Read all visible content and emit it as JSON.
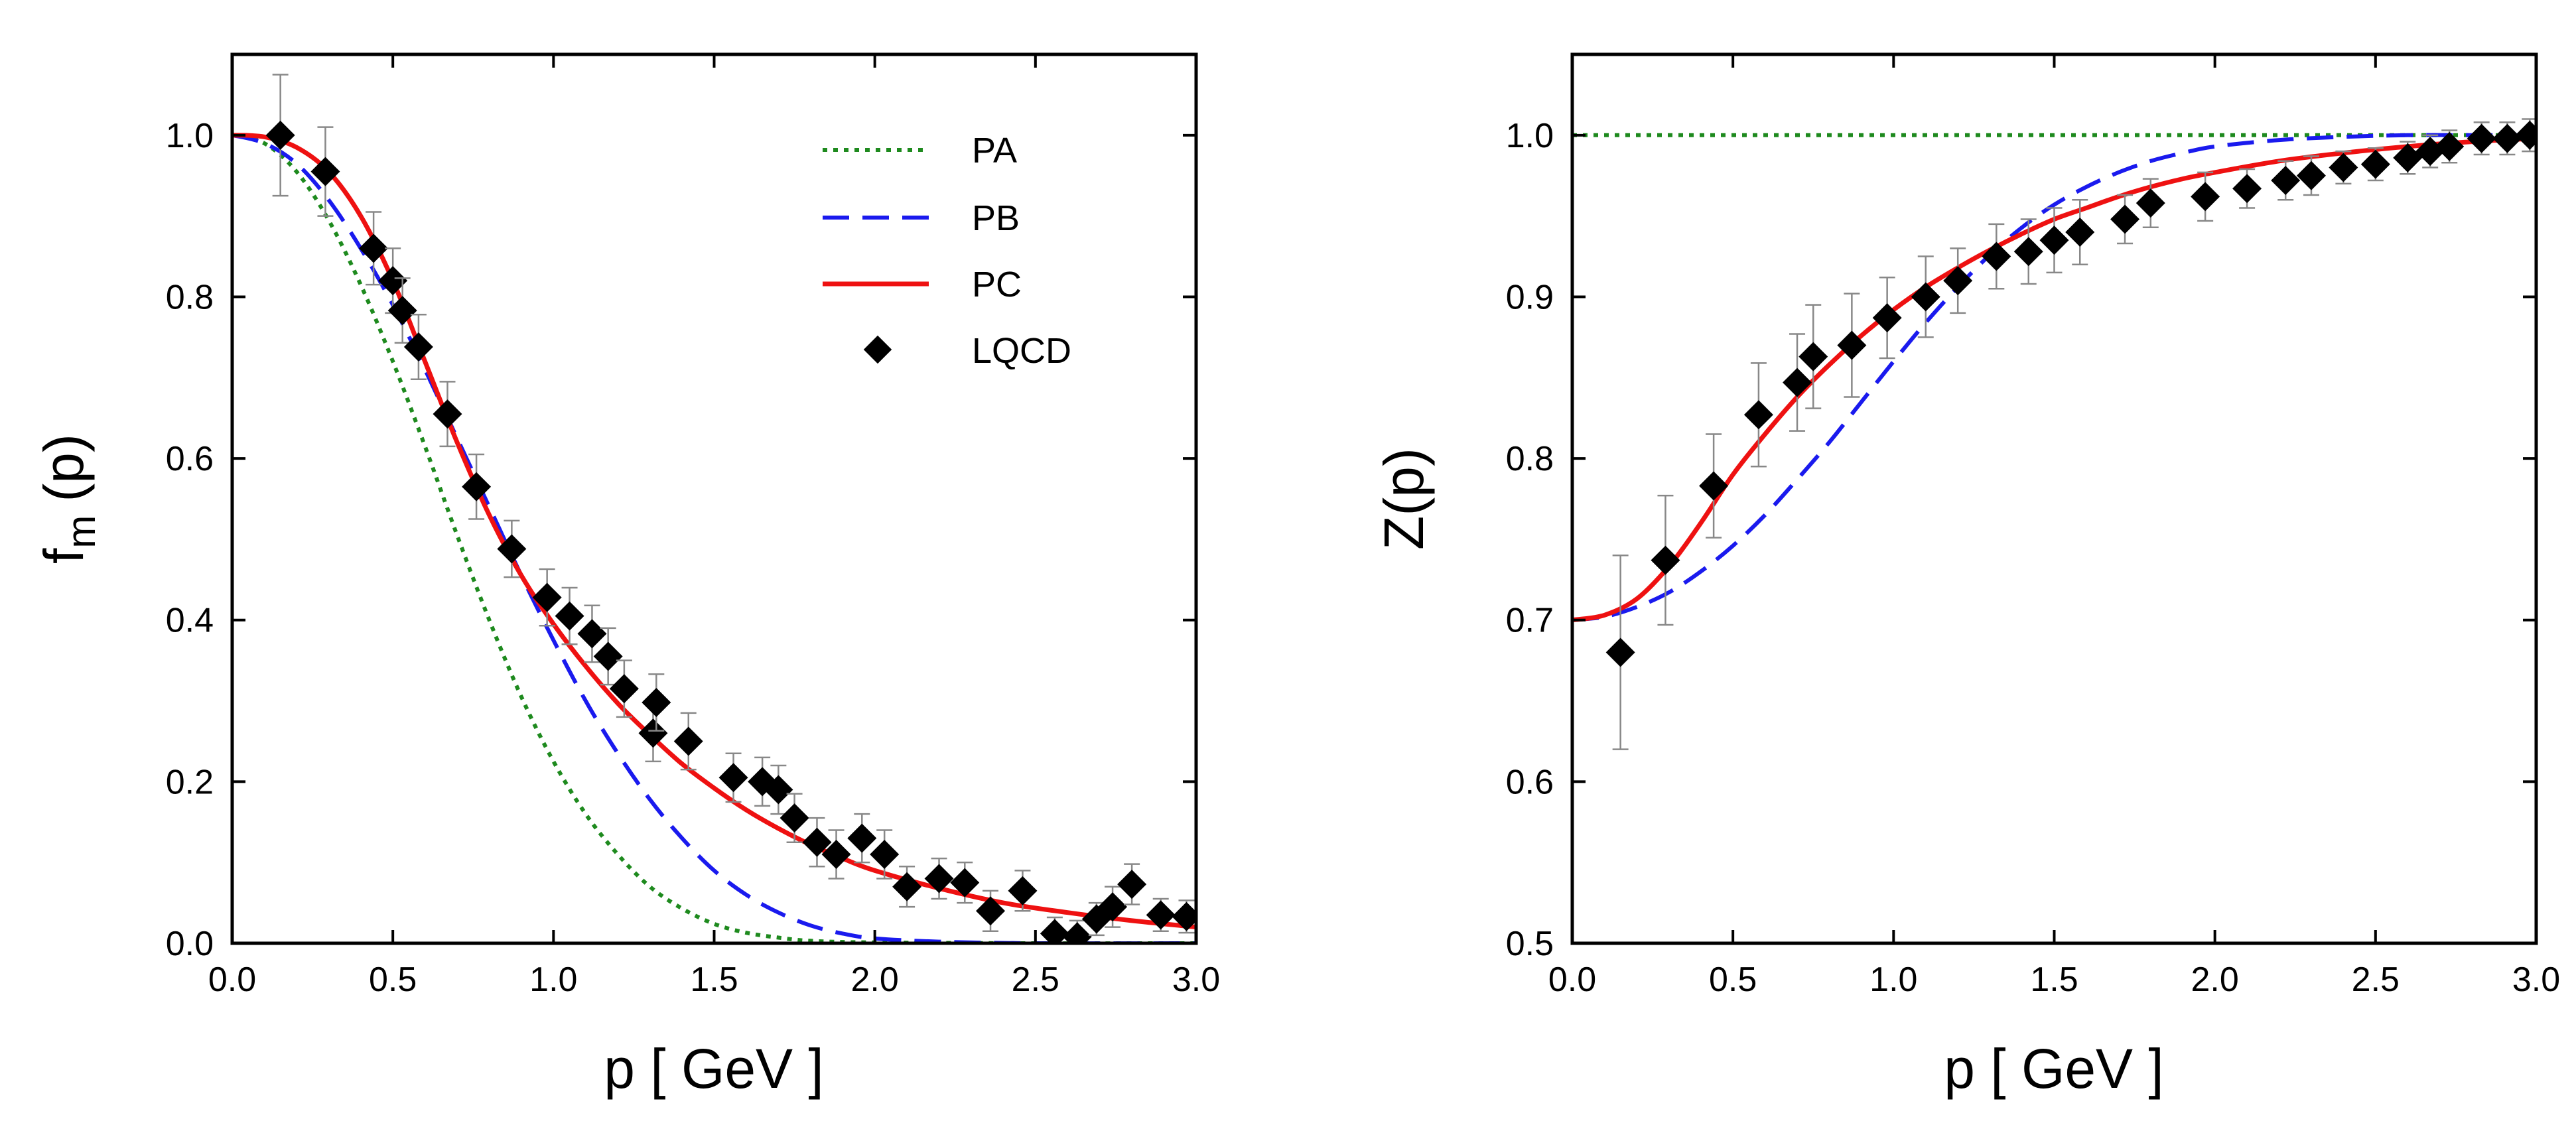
{
  "colors": {
    "PA": "#1e8a1e",
    "PB": "#1a1aee",
    "PC": "#ee1111",
    "LQCD": "#000000",
    "errorbar": "#888888"
  },
  "chart_data": [
    {
      "type": "line",
      "panel": "left",
      "xlabel": "p  [ GeV ]",
      "ylabel_main": "f",
      "ylabel_sub": "m",
      "ylabel_tail": "(p)",
      "xlim": [
        0,
        3.0
      ],
      "ylim": [
        0,
        1.1
      ],
      "xticks": [
        0,
        0.5,
        1.0,
        1.5,
        2.0,
        2.5,
        3.0
      ],
      "xtick_labels": [
        "0.0",
        "0.5",
        "1.0",
        "1.5",
        "2.0",
        "2.5",
        "3.0"
      ],
      "yticks": [
        0,
        0.2,
        0.4,
        0.6,
        0.8,
        1.0
      ],
      "ytick_labels": [
        "0.0",
        "0.2",
        "0.4",
        "0.6",
        "0.8",
        "1.0"
      ],
      "legend": [
        "PA",
        "PB",
        "PC",
        "LQCD"
      ],
      "legend_position": "top-right",
      "series": [
        {
          "name": "PA",
          "style": "dotted",
          "x": [
            0,
            0.1,
            0.2,
            0.3,
            0.4,
            0.5,
            0.6,
            0.7,
            0.8,
            0.9,
            1.0,
            1.1,
            1.2,
            1.3,
            1.4,
            1.5,
            1.6,
            1.7,
            1.8,
            2.0,
            2.5,
            3.0
          ],
          "y": [
            1.0,
            0.99,
            0.955,
            0.895,
            0.815,
            0.72,
            0.615,
            0.505,
            0.4,
            0.305,
            0.225,
            0.16,
            0.11,
            0.07,
            0.043,
            0.024,
            0.013,
            0.007,
            0.003,
            0.001,
            0.0,
            0.0
          ]
        },
        {
          "name": "PB",
          "style": "dashed",
          "x": [
            0,
            0.1,
            0.2,
            0.3,
            0.4,
            0.5,
            0.6,
            0.7,
            0.8,
            0.9,
            1.0,
            1.1,
            1.2,
            1.3,
            1.4,
            1.5,
            1.6,
            1.7,
            1.8,
            1.9,
            2.0,
            2.2,
            2.5,
            3.0
          ],
          "y": [
            1.0,
            0.99,
            0.965,
            0.92,
            0.86,
            0.79,
            0.71,
            0.625,
            0.54,
            0.455,
            0.375,
            0.3,
            0.235,
            0.178,
            0.13,
            0.09,
            0.06,
            0.038,
            0.022,
            0.012,
            0.006,
            0.002,
            0.0,
            0.0
          ]
        },
        {
          "name": "PC",
          "style": "solid",
          "x": [
            0,
            0.1,
            0.2,
            0.3,
            0.4,
            0.5,
            0.6,
            0.7,
            0.8,
            0.9,
            1.0,
            1.1,
            1.2,
            1.3,
            1.4,
            1.5,
            1.6,
            1.7,
            1.8,
            1.9,
            2.0,
            2.2,
            2.4,
            2.6,
            2.8,
            3.0
          ],
          "y": [
            1.0,
            0.998,
            0.985,
            0.955,
            0.9,
            0.82,
            0.72,
            0.62,
            0.53,
            0.455,
            0.395,
            0.343,
            0.297,
            0.258,
            0.222,
            0.192,
            0.165,
            0.142,
            0.122,
            0.105,
            0.09,
            0.068,
            0.05,
            0.038,
            0.028,
            0.02
          ]
        },
        {
          "name": "LQCD",
          "style": "diamond",
          "points": [
            {
              "x": 0.15,
              "y": 1.0,
              "err": 0.075
            },
            {
              "x": 0.29,
              "y": 0.955,
              "err": 0.055
            },
            {
              "x": 0.44,
              "y": 0.86,
              "err": 0.045
            },
            {
              "x": 0.5,
              "y": 0.82,
              "err": 0.04
            },
            {
              "x": 0.53,
              "y": 0.783,
              "err": 0.04
            },
            {
              "x": 0.58,
              "y": 0.738,
              "err": 0.04
            },
            {
              "x": 0.67,
              "y": 0.655,
              "err": 0.04
            },
            {
              "x": 0.76,
              "y": 0.565,
              "err": 0.04
            },
            {
              "x": 0.87,
              "y": 0.488,
              "err": 0.035
            },
            {
              "x": 0.98,
              "y": 0.428,
              "err": 0.035
            },
            {
              "x": 1.05,
              "y": 0.405,
              "err": 0.035
            },
            {
              "x": 1.12,
              "y": 0.383,
              "err": 0.035
            },
            {
              "x": 1.17,
              "y": 0.355,
              "err": 0.035
            },
            {
              "x": 1.22,
              "y": 0.315,
              "err": 0.035
            },
            {
              "x": 1.31,
              "y": 0.26,
              "err": 0.035
            },
            {
              "x": 1.32,
              "y": 0.298,
              "err": 0.035
            },
            {
              "x": 1.42,
              "y": 0.25,
              "err": 0.035
            },
            {
              "x": 1.56,
              "y": 0.205,
              "err": 0.03
            },
            {
              "x": 1.65,
              "y": 0.2,
              "err": 0.03
            },
            {
              "x": 1.7,
              "y": 0.19,
              "err": 0.03
            },
            {
              "x": 1.75,
              "y": 0.155,
              "err": 0.03
            },
            {
              "x": 1.82,
              "y": 0.125,
              "err": 0.03
            },
            {
              "x": 1.88,
              "y": 0.11,
              "err": 0.03
            },
            {
              "x": 1.96,
              "y": 0.13,
              "err": 0.03
            },
            {
              "x": 2.03,
              "y": 0.11,
              "err": 0.03
            },
            {
              "x": 2.1,
              "y": 0.07,
              "err": 0.025
            },
            {
              "x": 2.2,
              "y": 0.08,
              "err": 0.025
            },
            {
              "x": 2.28,
              "y": 0.075,
              "err": 0.025
            },
            {
              "x": 2.36,
              "y": 0.04,
              "err": 0.025
            },
            {
              "x": 2.46,
              "y": 0.065,
              "err": 0.025
            },
            {
              "x": 2.56,
              "y": 0.012,
              "err": 0.02
            },
            {
              "x": 2.63,
              "y": 0.008,
              "err": 0.02
            },
            {
              "x": 2.69,
              "y": 0.03,
              "err": 0.02
            },
            {
              "x": 2.74,
              "y": 0.045,
              "err": 0.025
            },
            {
              "x": 2.8,
              "y": 0.073,
              "err": 0.025
            },
            {
              "x": 2.89,
              "y": 0.035,
              "err": 0.02
            },
            {
              "x": 2.97,
              "y": 0.033,
              "err": 0.02
            }
          ]
        }
      ]
    },
    {
      "type": "line",
      "panel": "right",
      "xlabel": "p  [ GeV ]",
      "ylabel": "Z(p)",
      "xlim": [
        0,
        3.0
      ],
      "ylim": [
        0.5,
        1.05
      ],
      "xticks": [
        0,
        0.5,
        1.0,
        1.5,
        2.0,
        2.5,
        3.0
      ],
      "xtick_labels": [
        "0.0",
        "0.5",
        "1.0",
        "1.5",
        "2.0",
        "2.5",
        "3.0"
      ],
      "yticks": [
        0.5,
        0.6,
        0.7,
        0.8,
        0.9,
        1.0
      ],
      "ytick_labels": [
        "0.5",
        "0.6",
        "0.7",
        "0.8",
        "0.9",
        "1.0"
      ],
      "series": [
        {
          "name": "PA",
          "style": "dotted",
          "x": [
            0,
            3.0
          ],
          "y": [
            1.0,
            1.0
          ]
        },
        {
          "name": "PB",
          "style": "dashed",
          "x": [
            0,
            0.1,
            0.2,
            0.3,
            0.4,
            0.5,
            0.6,
            0.7,
            0.8,
            0.9,
            1.0,
            1.1,
            1.2,
            1.3,
            1.4,
            1.5,
            1.6,
            1.7,
            1.8,
            1.9,
            2.0,
            2.2,
            2.4,
            2.6,
            2.8,
            3.0
          ],
          "y": [
            0.7,
            0.702,
            0.708,
            0.717,
            0.73,
            0.746,
            0.765,
            0.787,
            0.81,
            0.835,
            0.86,
            0.884,
            0.906,
            0.926,
            0.943,
            0.957,
            0.968,
            0.977,
            0.984,
            0.989,
            0.993,
            0.997,
            0.999,
            1.0,
            1.0,
            1.0
          ]
        },
        {
          "name": "PC",
          "style": "solid",
          "x": [
            0,
            0.1,
            0.2,
            0.3,
            0.4,
            0.5,
            0.6,
            0.7,
            0.8,
            0.9,
            1.0,
            1.1,
            1.2,
            1.3,
            1.4,
            1.5,
            1.6,
            1.7,
            1.8,
            1.9,
            2.0,
            2.2,
            2.4,
            2.6,
            2.8,
            3.0
          ],
          "y": [
            0.7,
            0.703,
            0.713,
            0.733,
            0.76,
            0.79,
            0.815,
            0.838,
            0.858,
            0.876,
            0.892,
            0.906,
            0.918,
            0.929,
            0.939,
            0.948,
            0.955,
            0.962,
            0.968,
            0.973,
            0.977,
            0.984,
            0.989,
            0.993,
            0.996,
            0.998
          ]
        },
        {
          "name": "LQCD",
          "style": "diamond",
          "points": [
            {
              "x": 0.15,
              "y": 0.68,
              "err": 0.06
            },
            {
              "x": 0.29,
              "y": 0.737,
              "err": 0.04
            },
            {
              "x": 0.44,
              "y": 0.783,
              "err": 0.032
            },
            {
              "x": 0.58,
              "y": 0.827,
              "err": 0.032
            },
            {
              "x": 0.7,
              "y": 0.847,
              "err": 0.03
            },
            {
              "x": 0.75,
              "y": 0.863,
              "err": 0.032
            },
            {
              "x": 0.87,
              "y": 0.87,
              "err": 0.032
            },
            {
              "x": 0.98,
              "y": 0.887,
              "err": 0.025
            },
            {
              "x": 1.1,
              "y": 0.9,
              "err": 0.025
            },
            {
              "x": 1.2,
              "y": 0.91,
              "err": 0.02
            },
            {
              "x": 1.32,
              "y": 0.925,
              "err": 0.02
            },
            {
              "x": 1.42,
              "y": 0.928,
              "err": 0.02
            },
            {
              "x": 1.5,
              "y": 0.935,
              "err": 0.02
            },
            {
              "x": 1.58,
              "y": 0.94,
              "err": 0.02
            },
            {
              "x": 1.72,
              "y": 0.948,
              "err": 0.015
            },
            {
              "x": 1.8,
              "y": 0.958,
              "err": 0.015
            },
            {
              "x": 1.97,
              "y": 0.962,
              "err": 0.015
            },
            {
              "x": 2.1,
              "y": 0.967,
              "err": 0.012
            },
            {
              "x": 2.22,
              "y": 0.972,
              "err": 0.012
            },
            {
              "x": 2.3,
              "y": 0.975,
              "err": 0.012
            },
            {
              "x": 2.4,
              "y": 0.98,
              "err": 0.01
            },
            {
              "x": 2.5,
              "y": 0.982,
              "err": 0.01
            },
            {
              "x": 2.6,
              "y": 0.986,
              "err": 0.01
            },
            {
              "x": 2.67,
              "y": 0.99,
              "err": 0.01
            },
            {
              "x": 2.73,
              "y": 0.993,
              "err": 0.01
            },
            {
              "x": 2.83,
              "y": 0.998,
              "err": 0.01
            },
            {
              "x": 2.91,
              "y": 0.998,
              "err": 0.01
            },
            {
              "x": 2.98,
              "y": 1.0,
              "err": 0.01
            }
          ]
        }
      ]
    }
  ]
}
